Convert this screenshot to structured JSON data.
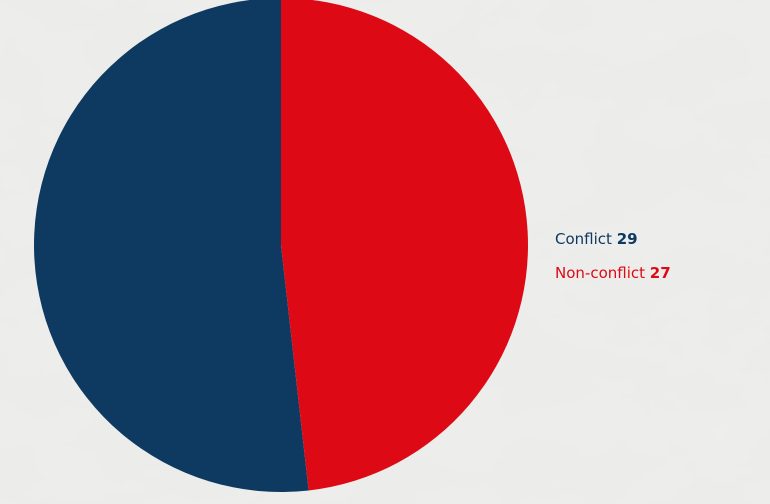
{
  "chart_data": {
    "type": "pie",
    "categories": [
      "Conflict",
      "Non-conflict"
    ],
    "values": [
      29,
      27
    ],
    "colors": [
      "#0e3a61",
      "#dd0a15"
    ],
    "start_angle_deg": 0,
    "direction": "counterclockwise",
    "legend": "right",
    "title": ""
  },
  "legend": {
    "items": [
      {
        "label": "Conflict",
        "value": "29",
        "color": "#0e3a61"
      },
      {
        "label": "Non-conflict",
        "value": "27",
        "color": "#dd0a15"
      }
    ]
  }
}
